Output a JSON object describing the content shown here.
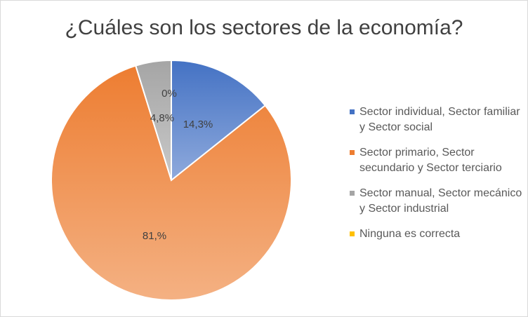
{
  "chart_data": {
    "type": "pie",
    "title": "¿Cuáles son los sectores de la economía?",
    "slices": [
      {
        "name": "Sector individual, Sector familiar y Sector social",
        "value": 14.3,
        "label": "14,3%",
        "color": "#4472c4",
        "color_light": "#8faadc"
      },
      {
        "name": "Sector primario, Sector secundario y Sector terciario",
        "value": 81.0,
        "label": "81,%",
        "color": "#ed7d31",
        "color_light": "#f4b183"
      },
      {
        "name": "Sector manual, Sector mecánico y Sector industrial",
        "value": 4.8,
        "label": "4,8%",
        "color": "#a5a5a5",
        "color_light": "#c9c9c9"
      },
      {
        "name": "Ninguna es correcta",
        "value": 0,
        "label": "0%",
        "color": "#ffc000",
        "color_light": "#ffd966"
      }
    ],
    "legend_position": "right"
  }
}
